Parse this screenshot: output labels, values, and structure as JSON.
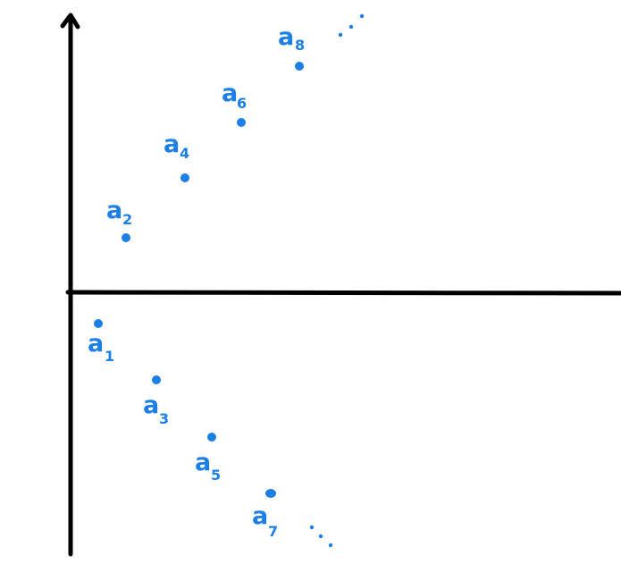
{
  "colors": {
    "axis": "#000000",
    "ink": "#1c7fe5"
  },
  "points": [
    {
      "letter": "a",
      "index": "1"
    },
    {
      "letter": "a",
      "index": "2"
    },
    {
      "letter": "a",
      "index": "3"
    },
    {
      "letter": "a",
      "index": "4"
    },
    {
      "letter": "a",
      "index": "5"
    },
    {
      "letter": "a",
      "index": "6"
    },
    {
      "letter": "a",
      "index": "7"
    },
    {
      "letter": "a",
      "index": "8"
    }
  ],
  "continuation": [
    "upper",
    "lower"
  ]
}
